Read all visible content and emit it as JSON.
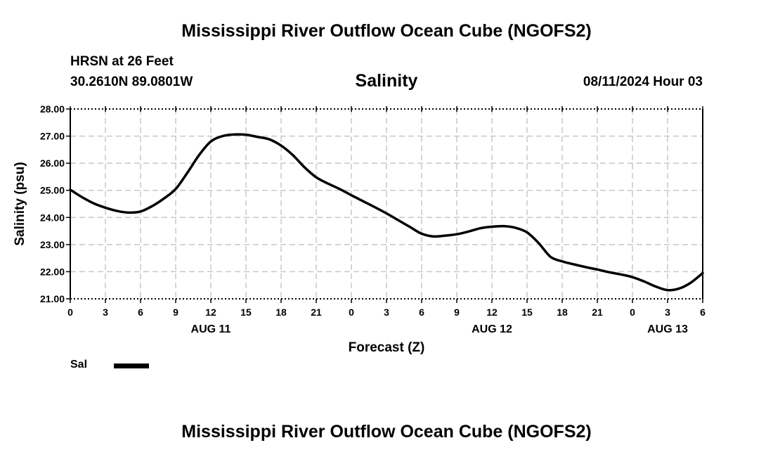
{
  "header": {
    "title": "Mississippi River Outflow Ocean Cube (NGOFS2)",
    "station": "HRSN at 26 Feet",
    "coordinates": "30.2610N  89.0801W",
    "parameter": "Salinity",
    "run_time": "08/11/2024 Hour 03"
  },
  "footer": {
    "title": "Mississippi River Outflow Ocean Cube (NGOFS2)"
  },
  "legend": {
    "label": "Sal",
    "color": "#000000"
  },
  "chart_data": {
    "type": "line",
    "title": "Salinity",
    "xlabel": "Forecast (Z)",
    "ylabel": "Salinity (psu)",
    "xlim": [
      0,
      54
    ],
    "ylim": [
      21,
      28
    ],
    "grid": true,
    "y_ticks": [
      "21.00",
      "22.00",
      "23.00",
      "24.00",
      "25.00",
      "26.00",
      "27.00",
      "28.00"
    ],
    "x_ticks": [
      {
        "hour": 0,
        "label": "0"
      },
      {
        "hour": 3,
        "label": "3"
      },
      {
        "hour": 6,
        "label": "6"
      },
      {
        "hour": 9,
        "label": "9"
      },
      {
        "hour": 12,
        "label": "12"
      },
      {
        "hour": 15,
        "label": "15"
      },
      {
        "hour": 18,
        "label": "18"
      },
      {
        "hour": 21,
        "label": "21"
      },
      {
        "hour": 24,
        "label": "0"
      },
      {
        "hour": 27,
        "label": "3"
      },
      {
        "hour": 30,
        "label": "6"
      },
      {
        "hour": 33,
        "label": "9"
      },
      {
        "hour": 36,
        "label": "12"
      },
      {
        "hour": 39,
        "label": "15"
      },
      {
        "hour": 42,
        "label": "18"
      },
      {
        "hour": 45,
        "label": "21"
      },
      {
        "hour": 48,
        "label": "0"
      },
      {
        "hour": 51,
        "label": "3"
      },
      {
        "hour": 54,
        "label": "6"
      }
    ],
    "date_labels": [
      {
        "hour": 12,
        "label": "AUG 11"
      },
      {
        "hour": 36,
        "label": "AUG 12"
      },
      {
        "hour": 51,
        "label": "AUG 13"
      }
    ],
    "series": [
      {
        "name": "Sal",
        "x": [
          0,
          1,
          2,
          3,
          4,
          5,
          6,
          7,
          8,
          9,
          10,
          11,
          12,
          13,
          14,
          15,
          16,
          17,
          18,
          19,
          20,
          21,
          22,
          23,
          24,
          25,
          26,
          27,
          28,
          29,
          30,
          31,
          32,
          33,
          34,
          35,
          36,
          37,
          38,
          39,
          40,
          41,
          42,
          43,
          44,
          45,
          46,
          47,
          48,
          49,
          50,
          51,
          52,
          53,
          54
        ],
        "values": [
          25.02,
          24.75,
          24.52,
          24.36,
          24.24,
          24.18,
          24.22,
          24.42,
          24.7,
          25.05,
          25.65,
          26.3,
          26.8,
          27.0,
          27.06,
          27.05,
          26.97,
          26.88,
          26.65,
          26.3,
          25.85,
          25.48,
          25.25,
          25.05,
          24.82,
          24.6,
          24.38,
          24.15,
          23.9,
          23.65,
          23.4,
          23.3,
          23.33,
          23.38,
          23.48,
          23.6,
          23.66,
          23.68,
          23.62,
          23.45,
          23.05,
          22.55,
          22.38,
          22.27,
          22.17,
          22.08,
          21.98,
          21.9,
          21.8,
          21.64,
          21.45,
          21.32,
          21.38,
          21.6,
          21.95
        ]
      }
    ]
  }
}
